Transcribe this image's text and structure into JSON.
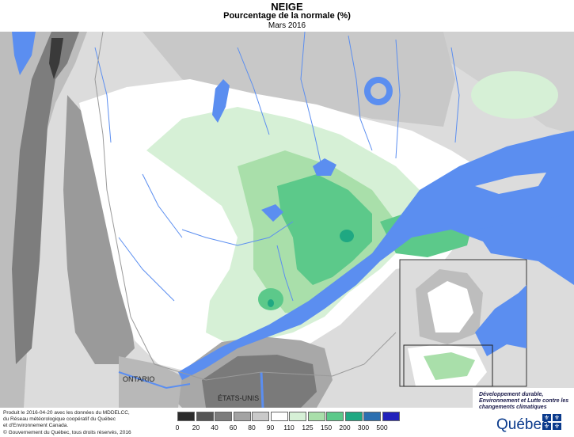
{
  "header": {
    "title": "NEIGE",
    "subtitle": "Pourcentage de la normale (%)",
    "date": "Mars 2016"
  },
  "map_labels": {
    "ontario": "ONTARIO",
    "usa": "ÉTATS-UNIS"
  },
  "credits": {
    "line1": "Produit le 2016-04-20 avec les données du MDDELCC,",
    "line2": "du Réseau météorologique coopératif du Québec",
    "line3": "et d'Environnement Canada.",
    "copyright": "© Gouvernement du Québec, tous droits réservés, 2016"
  },
  "legend": {
    "labels": [
      "0",
      "20",
      "40",
      "60",
      "80",
      "90",
      "110",
      "125",
      "150",
      "200",
      "300",
      "500"
    ],
    "colors": [
      "#2b2b2b",
      "#555555",
      "#7c7c7c",
      "#a3a3a3",
      "#c9c9c9",
      "#ffffff",
      "#d6f0d6",
      "#a9dfaa",
      "#5cc98a",
      "#1fa882",
      "#2c6fb0",
      "#2222bb"
    ]
  },
  "logo": {
    "ministry": "Développement durable, Environnement et Lutte contre les changements climatiques",
    "province": "Québec"
  },
  "colors": {
    "water": "#5b8ef0",
    "neutral": "#ffffff",
    "outside": "#d9d9d9"
  }
}
